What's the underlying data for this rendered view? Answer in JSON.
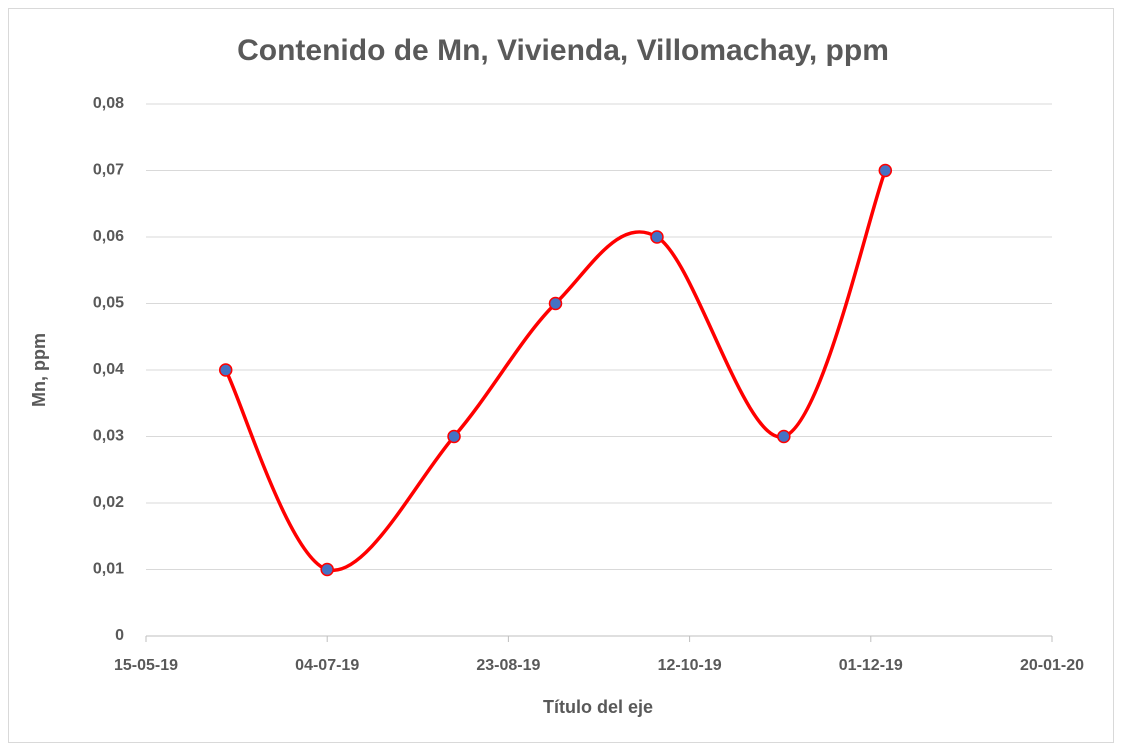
{
  "chart_data": {
    "type": "line",
    "title": "Contenido de Mn, Vivienda, Villomachay, ppm",
    "xlabel": "Título del eje",
    "ylabel": "Mn, ppm",
    "x": [
      "2019-06-06",
      "2019-07-04",
      "2019-08-08",
      "2019-09-05",
      "2019-10-03",
      "2019-11-07",
      "2019-12-05"
    ],
    "series": [
      {
        "color": "#ff0000",
        "marker_color": "#4472c4",
        "values": [
          0.04,
          0.01,
          0.03,
          0.05,
          0.06,
          0.03,
          0.07
        ]
      }
    ],
    "smooth": true,
    "xlim": [
      "2019-05-15",
      "2020-01-20"
    ],
    "xticks": [
      {
        "value": "2019-05-15",
        "label": "15-05-19"
      },
      {
        "value": "2019-07-04",
        "label": "04-07-19"
      },
      {
        "value": "2019-08-23",
        "label": "23-08-19"
      },
      {
        "value": "2019-10-12",
        "label": "12-10-19"
      },
      {
        "value": "2019-12-01",
        "label": "01-12-19"
      },
      {
        "value": "2020-01-20",
        "label": "20-01-20"
      }
    ],
    "ylim": [
      0,
      0.08
    ],
    "yticks": [
      0,
      {
        "value": 0.01,
        "label": "0,01"
      },
      {
        "value": 0.02,
        "label": "0,02"
      },
      {
        "value": 0.03,
        "label": "0,03"
      },
      {
        "value": 0.04,
        "label": "0,04"
      },
      {
        "value": 0.05,
        "label": "0,05"
      },
      {
        "value": 0.06,
        "label": "0,06"
      },
      {
        "value": 0.07,
        "label": "0,07"
      },
      {
        "value": 0.08,
        "label": "0,08"
      }
    ],
    "grid": true
  }
}
